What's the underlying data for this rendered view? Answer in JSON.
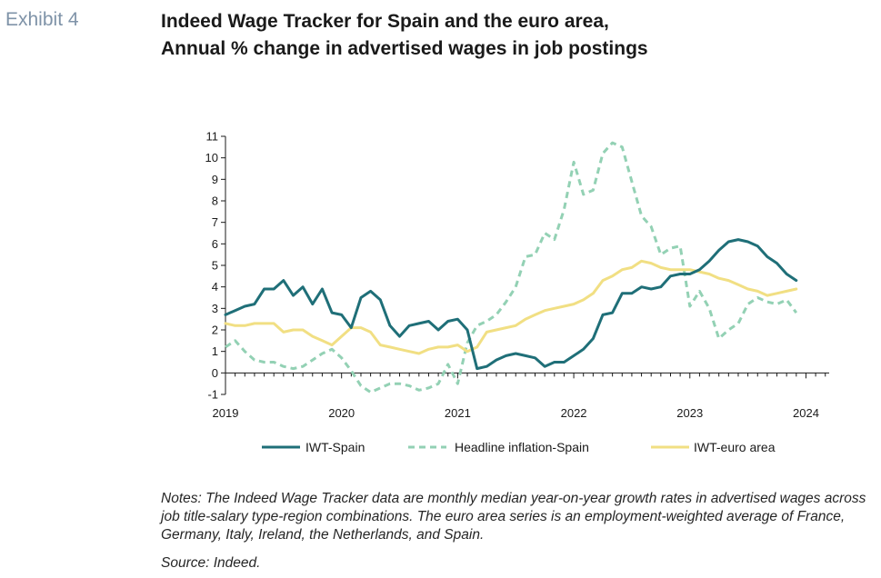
{
  "exhibit_label": "Exhibit 4",
  "title_line1": "Indeed Wage Tracker for Spain and the euro area,",
  "title_line2": "Annual % change in advertised wages in job postings",
  "notes": "Notes: The Indeed Wage Tracker data are monthly median year-on-year growth rates in advertised wages across job title-salary type-region combinations. The euro area series is an employment-weighted average of France, Germany, Italy, Ireland, the Netherlands, and Spain.",
  "source": "Source: Indeed.",
  "colors": {
    "iwt_spain": "#1f6f78",
    "headline_inflation_spain": "#93d1b4",
    "iwt_euro_area": "#f1df83",
    "axis": "#1a1a1a"
  },
  "chart_data": {
    "type": "line",
    "title": "Indeed Wage Tracker for Spain and the euro area, Annual % change in advertised wages in job postings",
    "xlabel": "",
    "ylabel": "",
    "xlim": [
      2019.0,
      2024.2
    ],
    "ylim": [
      -1,
      11
    ],
    "yticks": [
      -1,
      0,
      1,
      2,
      3,
      4,
      5,
      6,
      7,
      8,
      9,
      10,
      11
    ],
    "xticks": [
      "2019",
      "2020",
      "2021",
      "2022",
      "2023",
      "2024"
    ],
    "grid": false,
    "legend_position": "bottom",
    "series": [
      {
        "name": "IWT-Spain",
        "style": "solid",
        "start": 2019.0,
        "step_months": 1,
        "values": [
          2.7,
          2.9,
          3.1,
          3.2,
          3.9,
          3.9,
          4.3,
          3.6,
          4.0,
          3.2,
          3.9,
          2.8,
          2.7,
          2.1,
          3.5,
          3.8,
          3.4,
          2.2,
          1.7,
          2.2,
          2.3,
          2.4,
          2.0,
          2.4,
          2.5,
          2.0,
          0.2,
          0.3,
          0.6,
          0.8,
          0.9,
          0.8,
          0.7,
          0.3,
          0.5,
          0.5,
          0.8,
          1.1,
          1.6,
          2.7,
          2.8,
          3.7,
          3.7,
          4.0,
          3.9,
          4.0,
          4.5,
          4.6,
          4.6,
          4.8,
          5.2,
          5.7,
          6.1,
          6.2,
          6.1,
          5.9,
          5.4,
          5.1,
          4.6,
          4.3
        ]
      },
      {
        "name": "Headline inflation-Spain",
        "style": "dashed",
        "start": 2019.0,
        "step_months": 1,
        "values": [
          1.2,
          1.5,
          1.0,
          0.6,
          0.5,
          0.5,
          0.3,
          0.2,
          0.3,
          0.6,
          0.9,
          1.1,
          0.7,
          0.1,
          -0.6,
          -0.9,
          -0.7,
          -0.5,
          -0.5,
          -0.6,
          -0.8,
          -0.7,
          -0.5,
          0.4,
          -0.5,
          1.4,
          2.2,
          2.4,
          2.7,
          3.3,
          4.0,
          5.4,
          5.5,
          6.5,
          6.2,
          7.6,
          9.8,
          8.3,
          8.5,
          10.2,
          10.7,
          10.5,
          8.9,
          7.3,
          6.8,
          5.5,
          5.8,
          5.9,
          3.1,
          3.8,
          3.0,
          1.6,
          2.0,
          2.3,
          3.2,
          3.5,
          3.3,
          3.2,
          3.4,
          2.8
        ]
      },
      {
        "name": "IWT-euro area",
        "style": "solid",
        "start": 2019.0,
        "step_months": 1,
        "values": [
          2.3,
          2.2,
          2.2,
          2.3,
          2.3,
          2.3,
          1.9,
          2.0,
          2.0,
          1.7,
          1.5,
          1.3,
          1.7,
          2.1,
          2.1,
          1.9,
          1.3,
          1.2,
          1.1,
          1.0,
          0.9,
          1.1,
          1.2,
          1.2,
          1.3,
          1.0,
          1.2,
          1.9,
          2.0,
          2.1,
          2.2,
          2.5,
          2.7,
          2.9,
          3.0,
          3.1,
          3.2,
          3.4,
          3.7,
          4.3,
          4.5,
          4.8,
          4.9,
          5.2,
          5.1,
          4.9,
          4.8,
          4.8,
          4.8,
          4.7,
          4.6,
          4.4,
          4.3,
          4.1,
          3.9,
          3.8,
          3.6,
          3.7,
          3.8,
          3.9
        ]
      }
    ]
  }
}
